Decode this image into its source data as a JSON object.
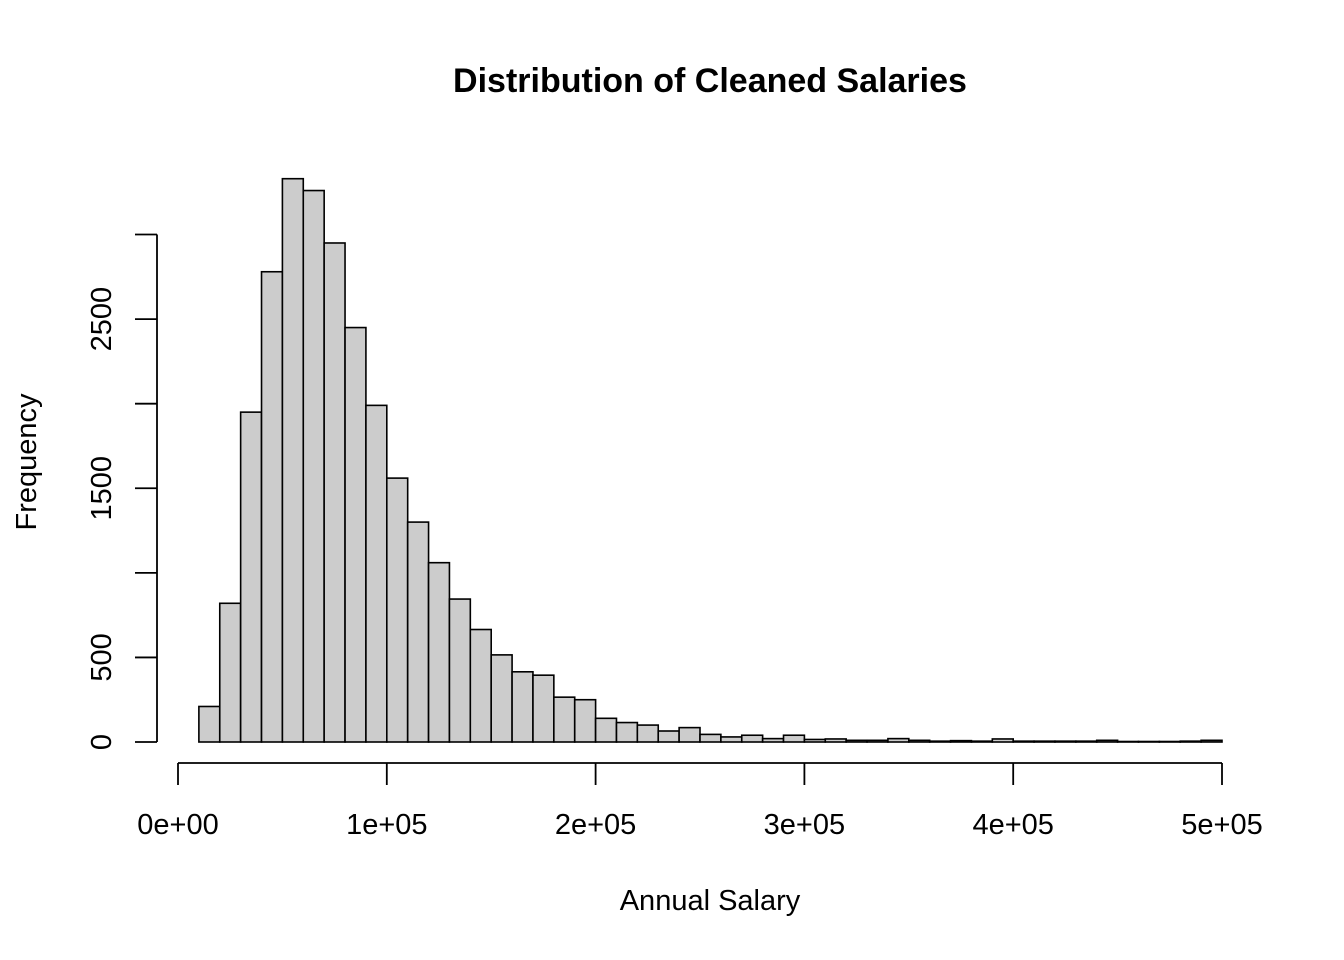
{
  "chart_data": {
    "type": "bar",
    "subtype": "histogram",
    "title": "Distribution of Cleaned Salaries",
    "xlabel": "Annual Salary",
    "ylabel": "Frequency",
    "xlim": [
      0,
      500000
    ],
    "ylim": [
      0,
      3350
    ],
    "bin_width": 10000,
    "bin_start": 10000,
    "values": [
      210,
      820,
      1950,
      2780,
      3330,
      3260,
      2950,
      2450,
      1990,
      1560,
      1300,
      1060,
      845,
      665,
      515,
      415,
      395,
      265,
      250,
      140,
      115,
      100,
      65,
      85,
      45,
      30,
      40,
      20,
      40,
      15,
      18,
      10,
      10,
      20,
      10,
      5,
      8,
      5,
      18,
      5,
      5,
      5,
      5,
      10,
      3,
      3,
      3,
      5,
      10
    ],
    "x_ticks": [
      {
        "value": 0,
        "label": "0e+00"
      },
      {
        "value": 100000,
        "label": "1e+05"
      },
      {
        "value": 200000,
        "label": "2e+05"
      },
      {
        "value": 300000,
        "label": "3e+05"
      },
      {
        "value": 400000,
        "label": "4e+05"
      },
      {
        "value": 500000,
        "label": "5e+05"
      }
    ],
    "y_ticks": [
      {
        "value": 0,
        "label": "0"
      },
      {
        "value": 500,
        "label": "500"
      },
      {
        "value": 1000,
        "label": ""
      },
      {
        "value": 1500,
        "label": "1500"
      },
      {
        "value": 2000,
        "label": ""
      },
      {
        "value": 2500,
        "label": "2500"
      },
      {
        "value": 3000,
        "label": ""
      }
    ],
    "colors": {
      "bar_fill": "#cccccc",
      "bar_stroke": "#000000"
    },
    "grid": false,
    "legend": "none"
  }
}
